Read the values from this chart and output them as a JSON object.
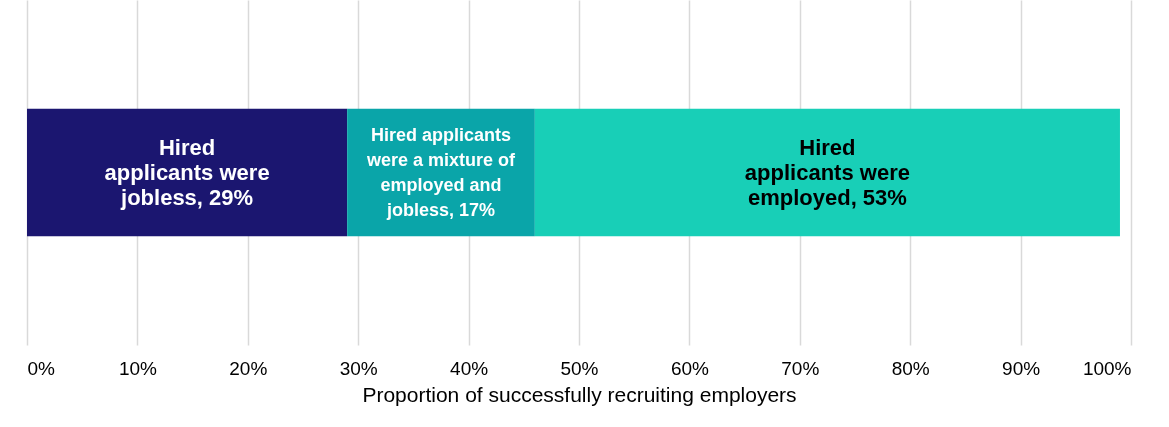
{
  "chart_data": {
    "type": "bar",
    "orientation": "horizontal",
    "stacked": true,
    "categories": [
      null
    ],
    "xlabel": "Proportion of successfully recruiting employers",
    "xlim": [
      0,
      100
    ],
    "xticks": [
      {
        "value": 0,
        "label": "0%"
      },
      {
        "value": 10,
        "label": "10%"
      },
      {
        "value": 20,
        "label": "20%"
      },
      {
        "value": 30,
        "label": "30%"
      },
      {
        "value": 40,
        "label": "40%"
      },
      {
        "value": 50,
        "label": "50%"
      },
      {
        "value": 60,
        "label": "60%"
      },
      {
        "value": 70,
        "label": "70%"
      },
      {
        "value": 80,
        "label": "80%"
      },
      {
        "value": 90,
        "label": "90%"
      },
      {
        "value": 100,
        "label": "100%"
      }
    ],
    "grid": "x",
    "legend": false,
    "series": [
      {
        "color": "#1b1670",
        "values": [
          29
        ],
        "value_labels": [
          "Hired applicants were jobless, 29%"
        ]
      },
      {
        "color": "#0aa5a9",
        "values": [
          17
        ],
        "value_labels": [
          "Hired applicants were a mixture of employed and jobless, 17%"
        ]
      },
      {
        "color": "#18cfb7",
        "values": [
          53
        ],
        "value_labels": [
          "Hired applicants were employed, 53%"
        ]
      }
    ]
  }
}
